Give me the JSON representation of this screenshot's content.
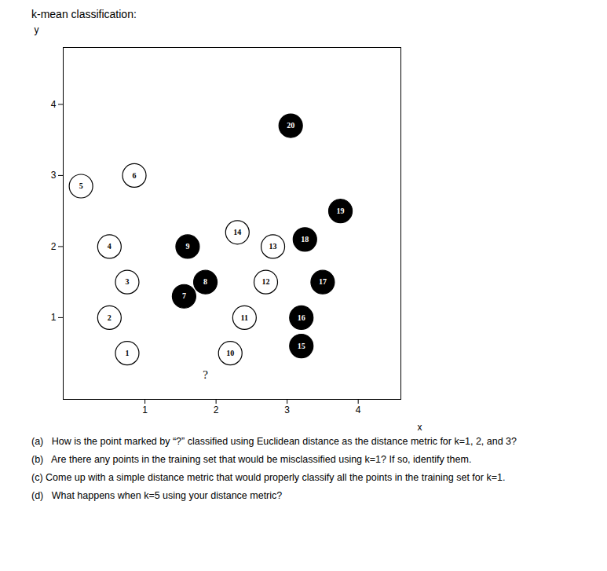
{
  "chart_data": {
    "type": "scatter",
    "title": "k-mean classification:",
    "x_label": "x",
    "y_label": "y",
    "xlim": [
      -0.15,
      4.6
    ],
    "ylim": [
      -0.15,
      4.8
    ],
    "xticks": [
      1,
      2,
      3,
      4
    ],
    "yticks": [
      1,
      2,
      3,
      4
    ],
    "grid": false,
    "data_labels": true,
    "points": [
      {
        "id": 1,
        "x": 0.75,
        "y": 0.5
      },
      {
        "id": 2,
        "x": 0.5,
        "y": 1.0
      },
      {
        "id": 3,
        "x": 0.75,
        "y": 1.5
      },
      {
        "id": 4,
        "x": 0.5,
        "y": 2.0
      },
      {
        "id": 5,
        "x": 0.1,
        "y": 2.85
      },
      {
        "id": 6,
        "x": 0.85,
        "y": 3.0
      },
      {
        "id": 7,
        "x": 1.55,
        "y": 1.3
      },
      {
        "id": 8,
        "x": 1.85,
        "y": 1.5
      },
      {
        "id": 9,
        "x": 1.6,
        "y": 2.0
      },
      {
        "id": 10,
        "x": 2.2,
        "y": 0.5
      },
      {
        "id": 11,
        "x": 2.4,
        "y": 1.0
      },
      {
        "id": 12,
        "x": 2.7,
        "y": 1.5
      },
      {
        "id": 13,
        "x": 2.8,
        "y": 2.0
      },
      {
        "id": 14,
        "x": 2.3,
        "y": 2.2
      },
      {
        "id": 15,
        "x": 3.2,
        "y": 0.6
      },
      {
        "id": 16,
        "x": 3.2,
        "y": 1.0
      },
      {
        "id": 17,
        "x": 3.5,
        "y": 1.5
      },
      {
        "id": 18,
        "x": 3.25,
        "y": 2.1
      },
      {
        "id": 19,
        "x": 3.75,
        "y": 2.5
      },
      {
        "id": 20,
        "x": 3.05,
        "y": 3.7
      }
    ],
    "colors": [
      "#ffffff",
      "#ffffff",
      "#ffffff",
      "#ffffff",
      "#ffffff",
      "#ffffff",
      "#000000",
      "#000000",
      "#000000",
      "#ffffff",
      "#ffffff",
      "#ffffff",
      "#ffffff",
      "#ffffff",
      "#000000",
      "#000000",
      "#000000",
      "#000000",
      "#000000",
      "#000000"
    ],
    "annotations": [
      {
        "text": "?",
        "x": 1.85,
        "y": 0.2
      }
    ],
    "notes": [
      "(a)   How is the point marked by “?” classified using Euclidean distance as the distance metric for k=1, 2, and 3?",
      "(b)   Are there any points in the training set that would be misclassified using k=1? If so, identify them.",
      "(c) Come up with a simple distance metric that would properly classify all the points in the training set for k=1.",
      "(d)   What happens when k=5 using your distance metric?"
    ]
  }
}
